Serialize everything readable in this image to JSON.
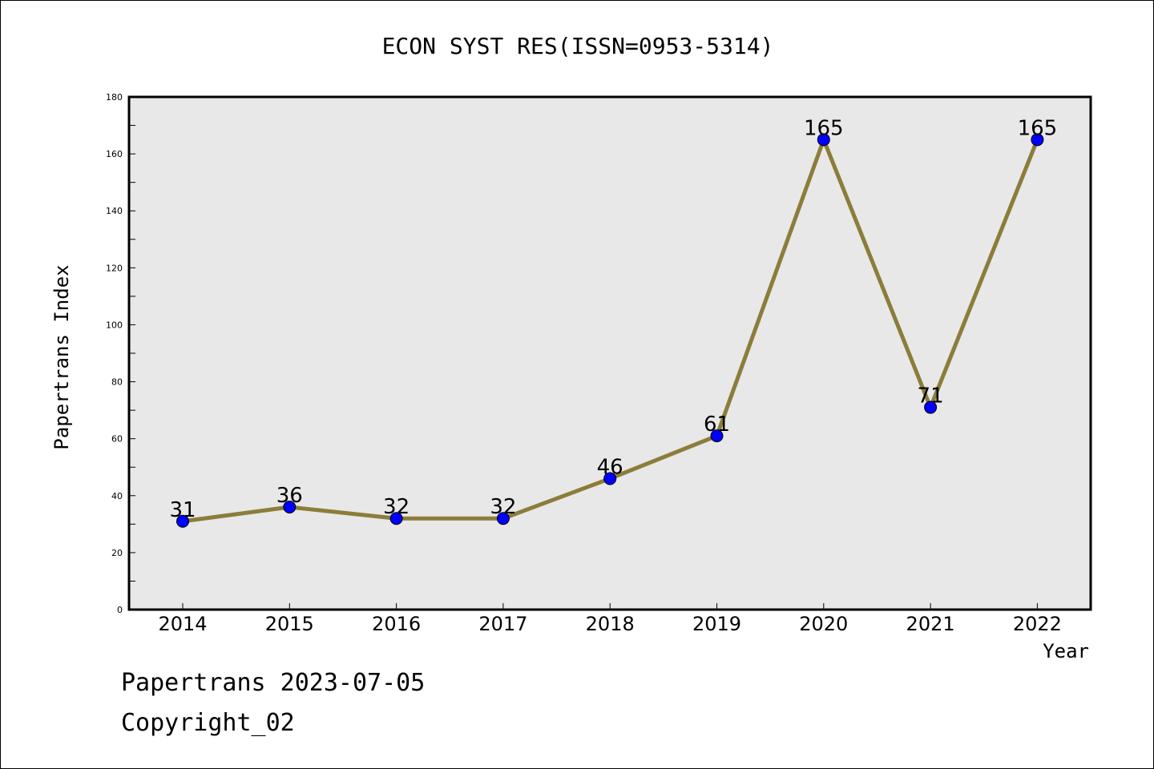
{
  "chart_data": {
    "type": "line",
    "title": "ECON SYST RES(ISSN=0953-5314)",
    "xlabel": "Year",
    "ylabel": "Papertrans Index",
    "categories": [
      "2014",
      "2015",
      "2016",
      "2017",
      "2018",
      "2019",
      "2020",
      "2021",
      "2022"
    ],
    "values": [
      31,
      36,
      32,
      32,
      46,
      61,
      165,
      71,
      165
    ],
    "data_labels": [
      "31",
      "36",
      "32",
      "32",
      "46",
      "61",
      "165",
      "71",
      "165"
    ],
    "ylim": [
      0,
      180
    ],
    "yticks": [
      0,
      20,
      40,
      60,
      80,
      100,
      120,
      140,
      160,
      180
    ],
    "grid": false,
    "legend": "none",
    "colors": {
      "line": "#8B7D3A",
      "marker": "#0000FF",
      "plot_bg": "#E8E8E8"
    }
  },
  "footer": {
    "line1": "Papertrans 2023-07-05",
    "line2": "Copyright_02"
  }
}
